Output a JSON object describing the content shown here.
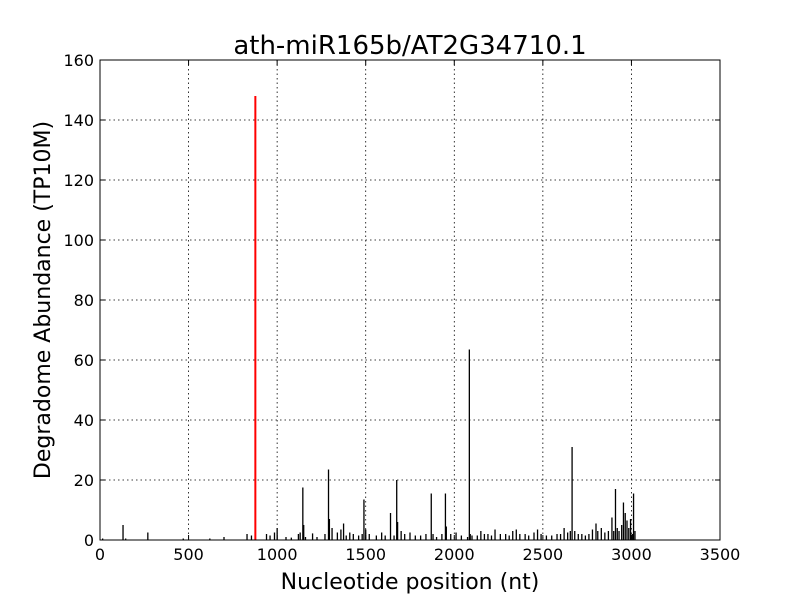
{
  "chart_data": {
    "type": "bar",
    "title": "ath-miR165b/AT2G34710.1",
    "xlabel": "Nucleotide position (nt)",
    "ylabel": "Degradome Abundance (TP10M)",
    "xlim": [
      0,
      3500
    ],
    "ylim": [
      0,
      160
    ],
    "xticks": [
      0,
      500,
      1000,
      1500,
      2000,
      2500,
      3000,
      3500
    ],
    "yticks": [
      0,
      20,
      40,
      60,
      80,
      100,
      120,
      140,
      160
    ],
    "grid": true,
    "colors": {
      "background": "#ffffff",
      "bars": "#000000",
      "highlight": "#ff0000"
    },
    "highlight": {
      "x": 877,
      "y": 148
    },
    "x": [
      15,
      130,
      145,
      270,
      470,
      620,
      700,
      830,
      855,
      940,
      960,
      985,
      1000,
      1050,
      1080,
      1120,
      1130,
      1145,
      1150,
      1160,
      1200,
      1225,
      1270,
      1290,
      1295,
      1310,
      1340,
      1360,
      1375,
      1390,
      1410,
      1430,
      1460,
      1480,
      1490,
      1500,
      1520,
      1560,
      1590,
      1610,
      1640,
      1660,
      1675,
      1680,
      1700,
      1720,
      1750,
      1780,
      1810,
      1840,
      1870,
      1880,
      1900,
      1930,
      1950,
      1955,
      1980,
      2010,
      2040,
      2075,
      2085,
      2090,
      2100,
      2130,
      2150,
      2170,
      2190,
      2210,
      2230,
      2260,
      2290,
      2310,
      2330,
      2350,
      2370,
      2400,
      2420,
      2450,
      2470,
      2490,
      2520,
      2550,
      2580,
      2600,
      2620,
      2640,
      2655,
      2665,
      2680,
      2700,
      2720,
      2740,
      2760,
      2780,
      2800,
      2810,
      2830,
      2850,
      2870,
      2890,
      2900,
      2910,
      2920,
      2930,
      2945,
      2955,
      2965,
      2975,
      2985,
      2995,
      3005,
      3012,
      3020
    ],
    "values": [
      0.5,
      5,
      0.5,
      2.5,
      0.5,
      0.5,
      1,
      2,
      1.5,
      2,
      1.5,
      2.5,
      4,
      1,
      0.8,
      2,
      2.5,
      17.5,
      5,
      1,
      2.2,
      1,
      2,
      23.5,
      7,
      4,
      2.5,
      3.5,
      5.5,
      1.5,
      2.5,
      2,
      1.5,
      2,
      13.5,
      3.5,
      2,
      1.5,
      2.5,
      1.5,
      9,
      1.5,
      20,
      6,
      3,
      2,
      2.5,
      1.5,
      1.5,
      2,
      15.5,
      2,
      1,
      2,
      15.5,
      4.5,
      2,
      2.5,
      1.5,
      1,
      63.5,
      2,
      1.5,
      1.5,
      3,
      2,
      2,
      1.5,
      3.5,
      2,
      2,
      1.5,
      3,
      3.5,
      2,
      2,
      1.5,
      2.5,
      3.5,
      2,
      1.5,
      1.5,
      2,
      2,
      4,
      2.5,
      3,
      31,
      3,
      2,
      2,
      1.5,
      2,
      3.5,
      5.5,
      3,
      4,
      2.5,
      3,
      7.5,
      3,
      17,
      4,
      3,
      5,
      12.5,
      9,
      6.5,
      4,
      7,
      2,
      15.5,
      3
    ]
  }
}
